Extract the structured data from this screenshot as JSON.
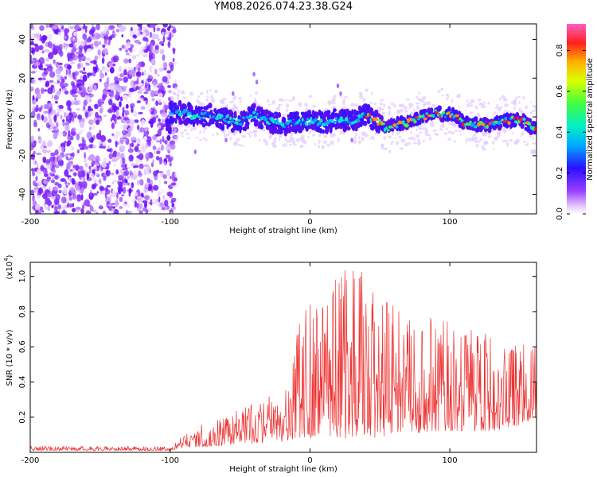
{
  "title": "YM08.2026.074.23.38.G24",
  "chart_data": [
    {
      "type": "heatmap",
      "name": "spectrogram",
      "xlabel": "Height of straight line (km)",
      "ylabel": "Frequency (Hz)",
      "xlim": [
        -200,
        162
      ],
      "ylim": [
        -50,
        48
      ],
      "xticks": [
        -200,
        -100,
        0,
        100
      ],
      "yticks": [
        -40,
        -20,
        0,
        20,
        40
      ],
      "colorbar": {
        "label": "Normalized spectral amplitude",
        "range": [
          0.0,
          0.93
        ],
        "ticks": [
          "0.0",
          "0.2",
          "0.4",
          "0.6",
          "0.8"
        ]
      },
      "noise_region_km": [
        -200,
        -100
      ],
      "ridge": [
        {
          "x": -100,
          "y": 3
        },
        {
          "x": -90,
          "y": 2
        },
        {
          "x": -80,
          "y": 0
        },
        {
          "x": -70,
          "y": 1
        },
        {
          "x": -60,
          "y": -1
        },
        {
          "x": -50,
          "y": -3
        },
        {
          "x": -40,
          "y": 1
        },
        {
          "x": -30,
          "y": -2
        },
        {
          "x": -20,
          "y": -4
        },
        {
          "x": -10,
          "y": -3
        },
        {
          "x": 0,
          "y": -2
        },
        {
          "x": 10,
          "y": -3
        },
        {
          "x": 20,
          "y": -1
        },
        {
          "x": 30,
          "y": -2
        },
        {
          "x": 40,
          "y": 1
        },
        {
          "x": 50,
          "y": -3
        },
        {
          "x": 55,
          "y": -6
        },
        {
          "x": 60,
          "y": -4
        },
        {
          "x": 70,
          "y": -3
        },
        {
          "x": 80,
          "y": 0
        },
        {
          "x": 90,
          "y": 2
        },
        {
          "x": 100,
          "y": 1
        },
        {
          "x": 105,
          "y": 0
        },
        {
          "x": 110,
          "y": -3
        },
        {
          "x": 120,
          "y": -4
        },
        {
          "x": 130,
          "y": -4
        },
        {
          "x": 140,
          "y": -2
        },
        {
          "x": 150,
          "y": -1
        },
        {
          "x": 160,
          "y": -6
        }
      ]
    },
    {
      "type": "line",
      "name": "snr",
      "xlabel": "Height of straight line (km)",
      "ylabel": "SNR (10 * v/v)",
      "yscale_label": "(x10",
      "yscale_exp": "4",
      "xlim": [
        -200,
        162
      ],
      "ylim": [
        0,
        1.08
      ],
      "xticks": [
        -200,
        -100,
        0,
        100
      ],
      "yticks": [
        0.2,
        0.4,
        0.6,
        0.8,
        1.0
      ],
      "color": "#ee3333",
      "envelope": [
        {
          "x": -200,
          "low": 0.01,
          "high": 0.035
        },
        {
          "x": -100,
          "low": 0.01,
          "high": 0.035
        },
        {
          "x": -95,
          "low": 0.02,
          "high": 0.07
        },
        {
          "x": -80,
          "low": 0.03,
          "high": 0.16
        },
        {
          "x": -60,
          "low": 0.04,
          "high": 0.22
        },
        {
          "x": -40,
          "low": 0.05,
          "high": 0.28
        },
        {
          "x": -20,
          "low": 0.06,
          "high": 0.35
        },
        {
          "x": -10,
          "low": 0.08,
          "high": 0.75
        },
        {
          "x": 0,
          "low": 0.08,
          "high": 0.85
        },
        {
          "x": 20,
          "low": 0.08,
          "high": 1.0
        },
        {
          "x": 35,
          "low": 0.08,
          "high": 1.05
        },
        {
          "x": 50,
          "low": 0.08,
          "high": 0.9
        },
        {
          "x": 70,
          "low": 0.1,
          "high": 0.85
        },
        {
          "x": 90,
          "low": 0.12,
          "high": 0.75
        },
        {
          "x": 110,
          "low": 0.12,
          "high": 0.75
        },
        {
          "x": 130,
          "low": 0.12,
          "high": 0.7
        },
        {
          "x": 150,
          "low": 0.15,
          "high": 0.65
        },
        {
          "x": 162,
          "low": 0.2,
          "high": 0.6
        }
      ]
    }
  ]
}
